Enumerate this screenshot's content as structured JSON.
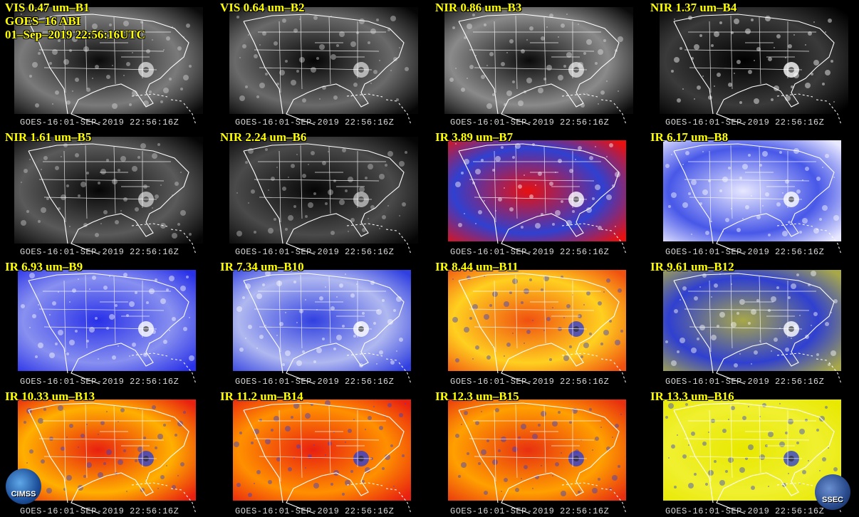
{
  "header": {
    "line1": "VIS 0.47 um–B1",
    "line2": "GOES–16 ABI",
    "line3": "01–Sep–2019 22:56:16UTC"
  },
  "timestamp": "GOES-16:01-SEP-2019  22:56:16Z",
  "panels": [
    {
      "label": "VIS 0.47 um–B1",
      "palette": [
        "#0a0a0a",
        "#7a7a7a",
        "#d8d8d8"
      ]
    },
    {
      "label": "VIS 0.64 um–B2",
      "palette": [
        "#050505",
        "#6a6a6a",
        "#d0d0d0"
      ]
    },
    {
      "label": "NIR 0.86 um–B3",
      "palette": [
        "#0a0a0a",
        "#8a8a8a",
        "#e0e0e0"
      ]
    },
    {
      "label": "NIR 1.37 um–B4",
      "palette": [
        "#000000",
        "#3a3a3a",
        "#ffffff"
      ]
    },
    {
      "label": "NIR 1.61 um–B5",
      "palette": [
        "#050505",
        "#5a5a5a",
        "#c8c8c8"
      ]
    },
    {
      "label": "NIR 2.24 um–B6",
      "palette": [
        "#050505",
        "#4a4a4a",
        "#c0c0c0"
      ]
    },
    {
      "label": "IR 3.89 um–B7",
      "palette": [
        "#e81010",
        "#3040d0",
        "#ffffff"
      ]
    },
    {
      "label": "IR 6.17 um–B8",
      "palette": [
        "#e8e8ff",
        "#4858e8",
        "#ffffff"
      ]
    },
    {
      "label": "IR 6.93 um–B9",
      "palette": [
        "#2830e8",
        "#8890f0",
        "#ffffff"
      ]
    },
    {
      "label": "IR 7.34 um–B10",
      "palette": [
        "#3040e0",
        "#b0b8f0",
        "#ffffff"
      ]
    },
    {
      "label": "IR 8.44 um–B11",
      "palette": [
        "#f05010",
        "#ffd020",
        "#3040d0"
      ]
    },
    {
      "label": "IR 9.61 um–B12",
      "palette": [
        "#a8a848",
        "#3040d0",
        "#ffffff"
      ]
    },
    {
      "label": "IR 10.33 um–B13",
      "palette": [
        "#e82010",
        "#ffb000",
        "#3040d0"
      ]
    },
    {
      "label": "IR 11.2 um–B14",
      "palette": [
        "#e82010",
        "#ff9000",
        "#3040d0"
      ]
    },
    {
      "label": "IR 12.3 um–B15",
      "palette": [
        "#e83010",
        "#ffa000",
        "#3040d0"
      ]
    },
    {
      "label": "IR 13.3 um–B16",
      "palette": [
        "#e8e800",
        "#f0f030",
        "#3040d0"
      ]
    }
  ],
  "logos": {
    "left": "CIMSS",
    "right": "SSEC"
  }
}
